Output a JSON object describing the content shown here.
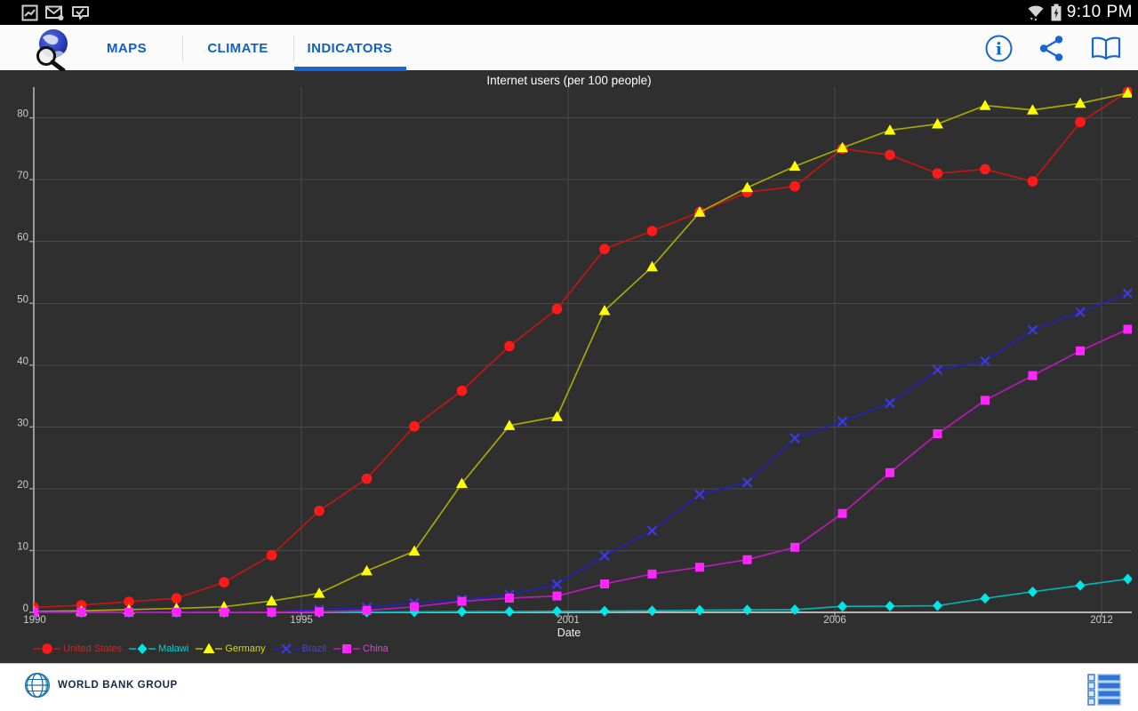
{
  "status_bar": {
    "time": "9:10 PM",
    "left_icons": [
      "screenshot-icon",
      "email-icon",
      "task-check-icon"
    ],
    "right_icons": [
      "wifi-icon",
      "battery-charging-icon"
    ]
  },
  "app_bar": {
    "tabs": [
      {
        "label": "MAPS",
        "active": false
      },
      {
        "label": "CLIMATE",
        "active": false
      },
      {
        "label": "INDICATORS",
        "active": true
      }
    ],
    "actions": [
      "info",
      "share",
      "library"
    ]
  },
  "chart_data": {
    "type": "line",
    "title": "Internet users (per 100 people)",
    "xlabel": "Date",
    "ylabel": "",
    "x": [
      1990,
      1991,
      1992,
      1993,
      1994,
      1995,
      1996,
      1997,
      1998,
      1999,
      2000,
      2001,
      2002,
      2003,
      2004,
      2005,
      2006,
      2007,
      2008,
      2009,
      2010,
      2011,
      2012,
      2013
    ],
    "x_tick_labels": [
      "1990",
      "1995",
      "2001",
      "2006",
      "2012"
    ],
    "y_ticks": [
      0,
      10,
      20,
      30,
      40,
      50,
      60,
      70,
      80
    ],
    "ylim": [
      0,
      85.5
    ],
    "grid": true,
    "legend_position": "bottom-left",
    "series": [
      {
        "name": "United States",
        "marker": "circle",
        "color": "#ff1a1a",
        "line_color": "#c41414",
        "label_color": "#d42222",
        "values": [
          0.78,
          1.16,
          1.72,
          2.27,
          4.86,
          9.24,
          16.42,
          21.62,
          30.09,
          35.85,
          43.08,
          49.08,
          58.79,
          61.7,
          64.76,
          67.97,
          68.93,
          75.0,
          74.0,
          71.0,
          71.69,
          69.73,
          79.3,
          84.2
        ]
      },
      {
        "name": "Malawi",
        "marker": "diamond",
        "color": "#00e5e5",
        "line_color": "#00b2b2",
        "label_color": "#00d2d2",
        "values": [
          0,
          0,
          0,
          0,
          0,
          0,
          0.01,
          0.03,
          0.07,
          0.12,
          0.13,
          0.17,
          0.2,
          0.26,
          0.35,
          0.4,
          0.43,
          0.97,
          1.0,
          1.07,
          2.26,
          3.33,
          4.35,
          5.4
        ]
      },
      {
        "name": "Germany",
        "marker": "triangle",
        "color": "#ffff00",
        "line_color": "#a8a800",
        "label_color": "#d8d800",
        "values": [
          0.13,
          0.25,
          0.44,
          0.64,
          0.91,
          1.84,
          3.08,
          6.7,
          9.9,
          20.85,
          30.22,
          31.65,
          48.82,
          55.9,
          64.73,
          68.71,
          72.16,
          75.16,
          78.0,
          79.0,
          82.0,
          81.27,
          82.35,
          84.0
        ]
      },
      {
        "name": "Brazil",
        "marker": "x",
        "color": "#3b3be0",
        "line_color": "#2121bb",
        "label_color": "#4646d0",
        "values": [
          0.0,
          0.01,
          0.01,
          0.03,
          0.06,
          0.1,
          0.45,
          0.8,
          1.5,
          2.04,
          2.87,
          4.53,
          9.15,
          13.21,
          19.07,
          21.02,
          28.18,
          30.88,
          33.83,
          39.22,
          40.65,
          45.69,
          48.56,
          51.6
        ]
      },
      {
        "name": "China",
        "marker": "square",
        "color": "#ff26ff",
        "line_color": "#b81ab8",
        "label_color": "#e83ce8",
        "values": [
          0,
          0,
          0,
          0.01,
          0.01,
          0.03,
          0.11,
          0.31,
          0.89,
          1.78,
          2.3,
          2.64,
          4.6,
          6.2,
          7.3,
          8.52,
          10.52,
          16.0,
          22.6,
          28.9,
          34.3,
          38.3,
          42.3,
          45.8
        ]
      }
    ]
  },
  "footer": {
    "brand": "WORLD BANK GROUP"
  },
  "colors": {
    "accent_blue": "#1467cd",
    "chart_background": "#2f2f2f",
    "grid_line": "#4a4a4a",
    "axis_line": "#b5b5b5",
    "tick_text": "#cbcbcb"
  }
}
